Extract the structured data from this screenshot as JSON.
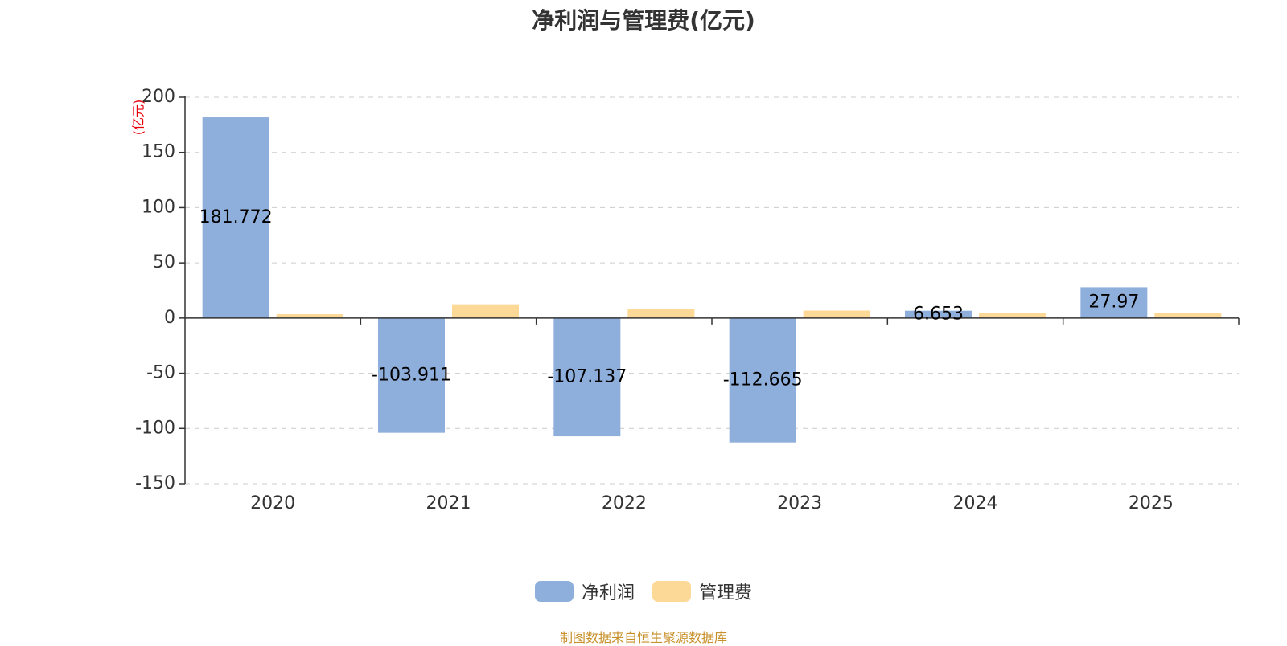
{
  "chart_data": {
    "type": "bar",
    "title": "净利润与管理费(亿元)",
    "ylabel": "(亿元)",
    "xlabel": "",
    "categories": [
      "2020",
      "2021",
      "2022",
      "2023",
      "2024",
      "2025"
    ],
    "ylim": [
      -150,
      200
    ],
    "yticks": [
      200,
      150,
      100,
      50,
      0,
      -50,
      -100,
      -150
    ],
    "grid": true,
    "legend_position": "bottom",
    "series": [
      {
        "name": "净利润",
        "color": "#8eaedb",
        "values": [
          181.772,
          -103.911,
          -107.137,
          -112.665,
          6.653,
          27.97
        ],
        "labels": [
          "181.772",
          "-103.911",
          "-107.137",
          "-112.665",
          "6.653",
          "27.97"
        ]
      },
      {
        "name": "管理费",
        "color": "#fdd998",
        "values": [
          3.5,
          12.5,
          8.5,
          6.8,
          4.5,
          4.5
        ]
      }
    ]
  },
  "source": "制图数据来自恒生聚源数据库",
  "colors": {
    "axis": "#333333",
    "grid": "#cccccc",
    "ylabel": "#e8000b"
  }
}
